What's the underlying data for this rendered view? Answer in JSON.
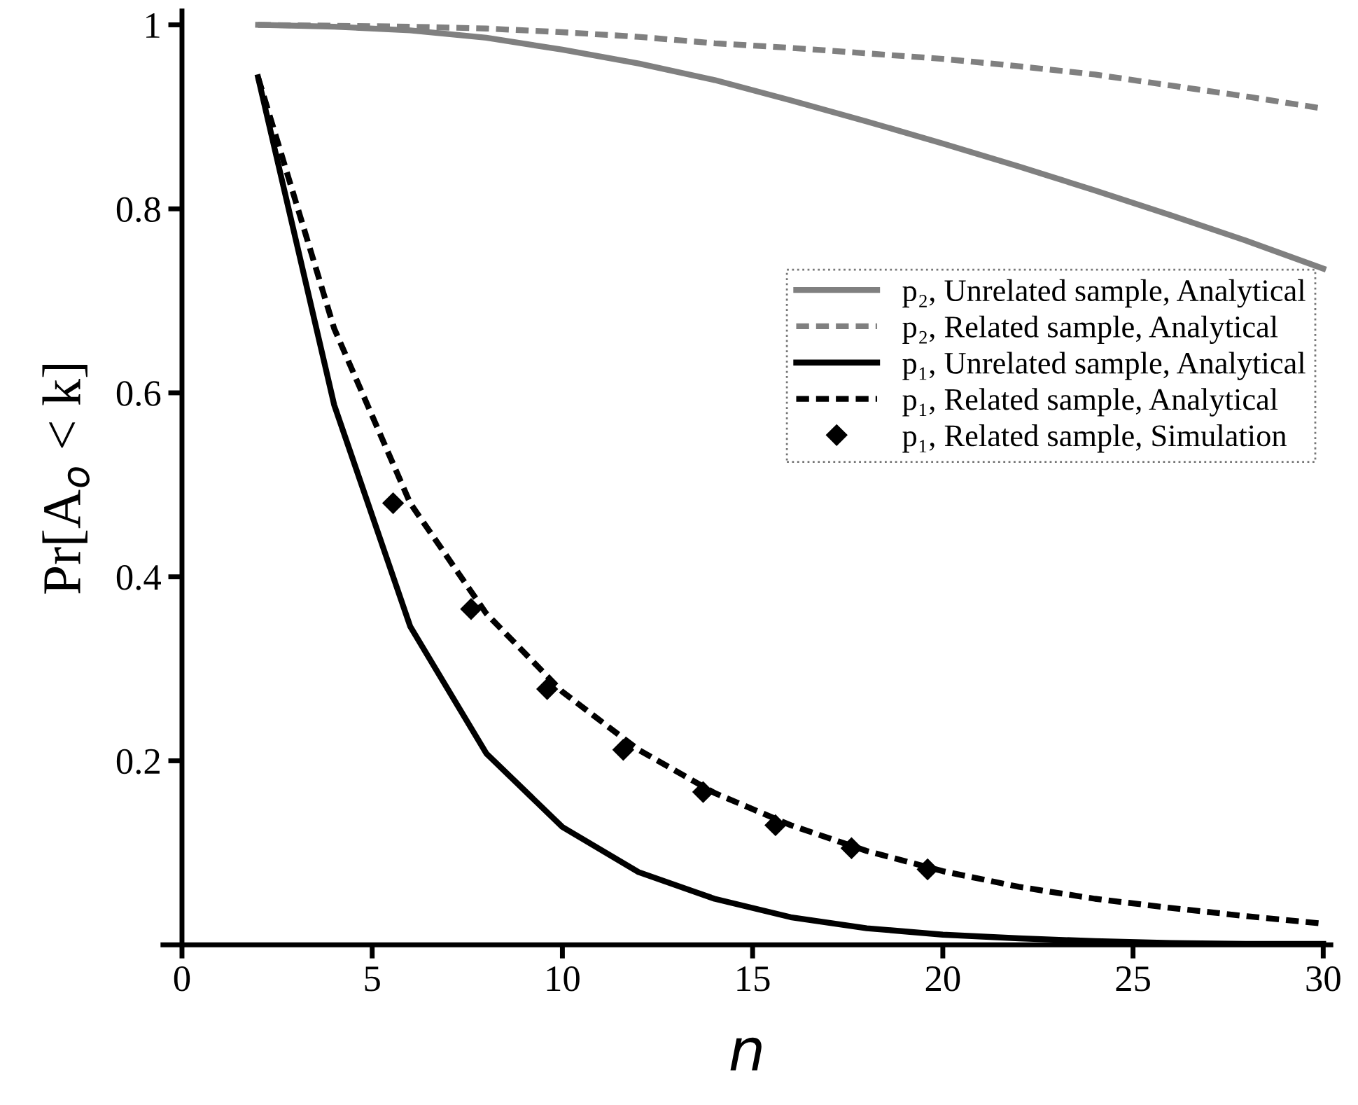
{
  "chart_data": {
    "type": "line",
    "xlabel": "n",
    "ylabel": "Pr[A$_{o}$ < k]",
    "x": [
      2,
      4,
      6,
      8,
      10,
      12,
      14,
      16,
      18,
      20,
      22,
      24,
      26,
      28,
      30
    ],
    "xlim": [
      -0.5,
      30.2
    ],
    "ylim": [
      0,
      1.015
    ],
    "xticks": [
      0,
      5,
      10,
      15,
      20,
      25,
      30
    ],
    "yticks": [
      0.2,
      0.4,
      0.6,
      0.8,
      1
    ],
    "grid": false,
    "legend": "right",
    "marker": "none",
    "series": [
      {
        "name": "p₂, Unrelated sample, Analytical",
        "color": "#808080",
        "line_style": "solid",
        "values": [
          1.0,
          0.998,
          0.994,
          0.986,
          0.973,
          0.958,
          0.94,
          0.918,
          0.895,
          0.871,
          0.846,
          0.82,
          0.793,
          0.765,
          0.735
        ]
      },
      {
        "name": "p₂, Related sample, Analytical",
        "color": "#808080",
        "line_style": "dashed",
        "values": [
          1.0,
          0.999,
          0.998,
          0.996,
          0.992,
          0.987,
          0.98,
          0.975,
          0.969,
          0.963,
          0.955,
          0.946,
          0.934,
          0.922,
          0.909
        ]
      },
      {
        "name": "p₁, Unrelated sample, Analytical",
        "color": "#000000",
        "line_style": "solid",
        "values": [
          0.943,
          0.587,
          0.346,
          0.208,
          0.128,
          0.079,
          0.05,
          0.03,
          0.018,
          0.011,
          0.007,
          0.004,
          0.002,
          0.001,
          0.001
        ]
      },
      {
        "name": "p₁, Related sample, Analytical",
        "color": "#000000",
        "line_style": "dashed",
        "values": [
          0.943,
          0.67,
          0.48,
          0.36,
          0.275,
          0.212,
          0.165,
          0.13,
          0.102,
          0.08,
          0.063,
          0.05,
          0.04,
          0.031,
          0.023
        ]
      },
      {
        "name": "p₁, Related sample, Simulation",
        "color": "#000000",
        "type": "scatter",
        "marker": "diamond",
        "x": [
          5.55,
          7.6,
          9.6,
          11.6,
          13.7,
          15.6,
          17.6,
          19.6
        ],
        "values": [
          0.48,
          0.365,
          0.278,
          0.212,
          0.166,
          0.13,
          0.105,
          0.082
        ]
      }
    ]
  }
}
